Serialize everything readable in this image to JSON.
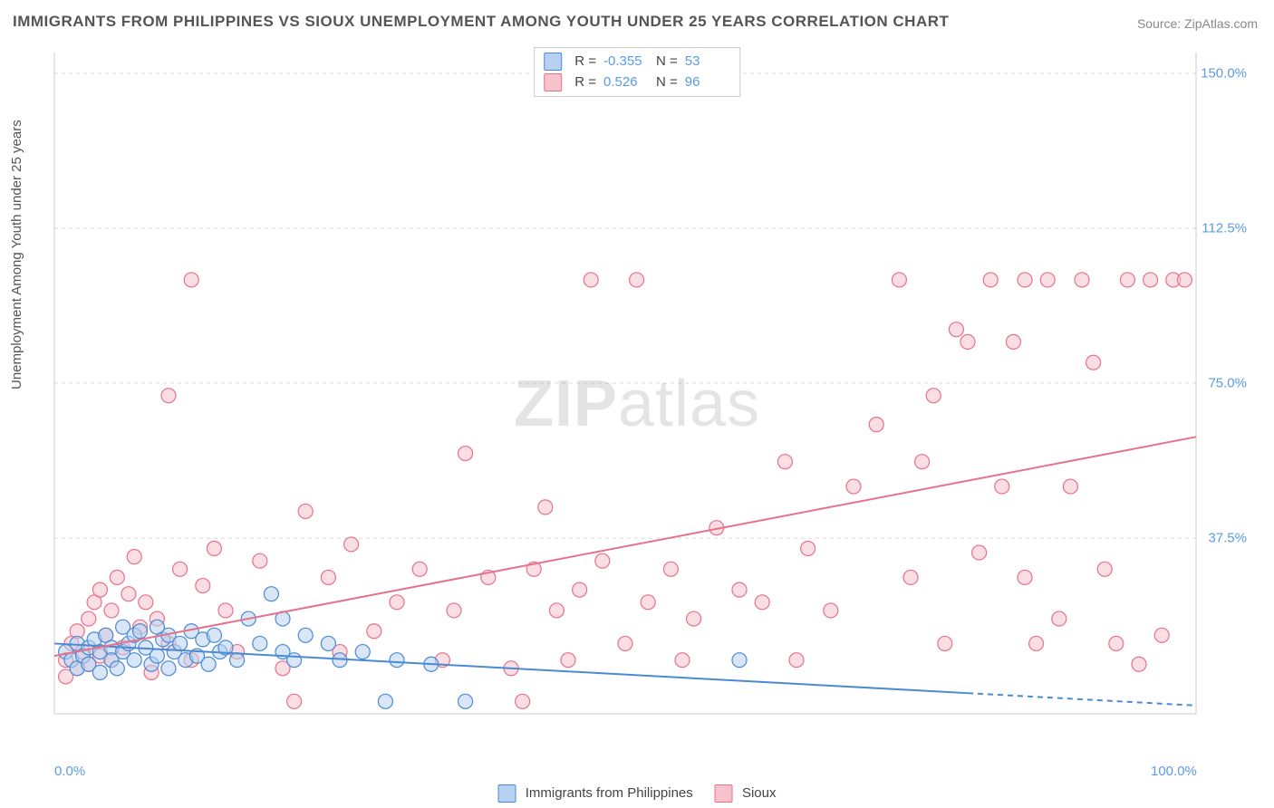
{
  "title": "IMMIGRANTS FROM PHILIPPINES VS SIOUX UNEMPLOYMENT AMONG YOUTH UNDER 25 YEARS CORRELATION CHART",
  "source_label": "Source: ZipAtlas.com",
  "watermark": "ZIPatlas",
  "ylabel": "Unemployment Among Youth under 25 years",
  "chart": {
    "type": "scatter",
    "xlim": [
      0,
      100
    ],
    "ylim": [
      -5,
      155
    ],
    "xticks": [
      {
        "v": 0,
        "label": "0.0%"
      },
      {
        "v": 100,
        "label": "100.0%"
      }
    ],
    "yticks": [
      {
        "v": 37.5,
        "label": "37.5%"
      },
      {
        "v": 75.0,
        "label": "75.0%"
      },
      {
        "v": 112.5,
        "label": "112.5%"
      },
      {
        "v": 150.0,
        "label": "150.0%"
      }
    ],
    "grid_color": "#d9d9d9",
    "background_color": "#ffffff",
    "axis_line_color": "#cccccc",
    "marker_radius": 8,
    "marker_stroke_width": 1.2,
    "trend_line_width": 2,
    "series": [
      {
        "name": "Immigrants from Philippines",
        "fill": "#b8d1f0",
        "stroke": "#4a8ad4",
        "fill_opacity": 0.55,
        "R": "-0.355",
        "N": "53",
        "trend": {
          "x1": 0,
          "y1": 12,
          "x2": 100,
          "y2": -3,
          "solid_until_x": 80
        },
        "points": [
          [
            1,
            10
          ],
          [
            1.5,
            8
          ],
          [
            2,
            12
          ],
          [
            2,
            6
          ],
          [
            2.5,
            9
          ],
          [
            3,
            11
          ],
          [
            3,
            7
          ],
          [
            3.5,
            13
          ],
          [
            4,
            10
          ],
          [
            4,
            5
          ],
          [
            4.5,
            14
          ],
          [
            5,
            11
          ],
          [
            5,
            8
          ],
          [
            5.5,
            6
          ],
          [
            6,
            16
          ],
          [
            6,
            10
          ],
          [
            6.5,
            12
          ],
          [
            7,
            14
          ],
          [
            7,
            8
          ],
          [
            7.5,
            15
          ],
          [
            8,
            11
          ],
          [
            8.5,
            7
          ],
          [
            9,
            16
          ],
          [
            9,
            9
          ],
          [
            9.5,
            13
          ],
          [
            10,
            14
          ],
          [
            10,
            6
          ],
          [
            10.5,
            10
          ],
          [
            11,
            12
          ],
          [
            11.5,
            8
          ],
          [
            12,
            15
          ],
          [
            12.5,
            9
          ],
          [
            13,
            13
          ],
          [
            13.5,
            7
          ],
          [
            14,
            14
          ],
          [
            14.5,
            10
          ],
          [
            15,
            11
          ],
          [
            16,
            8
          ],
          [
            17,
            18
          ],
          [
            18,
            12
          ],
          [
            19,
            24
          ],
          [
            20,
            10
          ],
          [
            20,
            18
          ],
          [
            21,
            8
          ],
          [
            22,
            14
          ],
          [
            24,
            12
          ],
          [
            25,
            8
          ],
          [
            27,
            10
          ],
          [
            29,
            -2
          ],
          [
            30,
            8
          ],
          [
            33,
            7
          ],
          [
            36,
            -2
          ],
          [
            60,
            8
          ]
        ]
      },
      {
        "name": "Sioux",
        "fill": "#f6c3cd",
        "stroke": "#e6718a",
        "fill_opacity": 0.55,
        "R": "0.526",
        "N": "96",
        "trend": {
          "x1": 0,
          "y1": 9,
          "x2": 100,
          "y2": 62,
          "solid_until_x": 100
        },
        "points": [
          [
            1,
            8
          ],
          [
            1,
            4
          ],
          [
            1.5,
            12
          ],
          [
            2,
            6
          ],
          [
            2,
            15
          ],
          [
            2.5,
            10
          ],
          [
            3,
            7
          ],
          [
            3,
            18
          ],
          [
            3.5,
            22
          ],
          [
            4,
            9
          ],
          [
            4,
            25
          ],
          [
            4.5,
            14
          ],
          [
            5,
            20
          ],
          [
            5,
            8
          ],
          [
            5.5,
            28
          ],
          [
            6,
            11
          ],
          [
            6.5,
            24
          ],
          [
            7,
            33
          ],
          [
            7.5,
            16
          ],
          [
            8,
            22
          ],
          [
            8.5,
            5
          ],
          [
            9,
            18
          ],
          [
            10,
            72
          ],
          [
            10,
            12
          ],
          [
            11,
            30
          ],
          [
            12,
            100
          ],
          [
            12,
            8
          ],
          [
            13,
            26
          ],
          [
            14,
            35
          ],
          [
            15,
            20
          ],
          [
            16,
            10
          ],
          [
            18,
            32
          ],
          [
            20,
            6
          ],
          [
            21,
            -2
          ],
          [
            22,
            44
          ],
          [
            24,
            28
          ],
          [
            25,
            10
          ],
          [
            26,
            36
          ],
          [
            28,
            15
          ],
          [
            30,
            22
          ],
          [
            32,
            30
          ],
          [
            34,
            8
          ],
          [
            35,
            20
          ],
          [
            36,
            58
          ],
          [
            38,
            28
          ],
          [
            40,
            6
          ],
          [
            41,
            -2
          ],
          [
            42,
            30
          ],
          [
            43,
            45
          ],
          [
            44,
            20
          ],
          [
            45,
            8
          ],
          [
            46,
            25
          ],
          [
            47,
            100
          ],
          [
            48,
            32
          ],
          [
            50,
            12
          ],
          [
            51,
            100
          ],
          [
            52,
            22
          ],
          [
            54,
            30
          ],
          [
            55,
            8
          ],
          [
            56,
            18
          ],
          [
            58,
            40
          ],
          [
            60,
            25
          ],
          [
            62,
            22
          ],
          [
            64,
            56
          ],
          [
            65,
            8
          ],
          [
            66,
            35
          ],
          [
            68,
            20
          ],
          [
            70,
            50
          ],
          [
            72,
            65
          ],
          [
            74,
            100
          ],
          [
            75,
            28
          ],
          [
            76,
            56
          ],
          [
            77,
            72
          ],
          [
            78,
            12
          ],
          [
            79,
            88
          ],
          [
            80,
            85
          ],
          [
            81,
            34
          ],
          [
            82,
            100
          ],
          [
            83,
            50
          ],
          [
            84,
            85
          ],
          [
            85,
            28
          ],
          [
            86,
            12
          ],
          [
            87,
            100
          ],
          [
            88,
            18
          ],
          [
            89,
            50
          ],
          [
            90,
            100
          ],
          [
            91,
            80
          ],
          [
            92,
            30
          ],
          [
            93,
            12
          ],
          [
            94,
            100
          ],
          [
            95,
            7
          ],
          [
            96,
            100
          ],
          [
            97,
            14
          ],
          [
            98,
            100
          ],
          [
            99,
            100
          ],
          [
            85,
            100
          ]
        ]
      }
    ],
    "legend_labels": {
      "R_prefix": "R =",
      "N_prefix": "N ="
    }
  }
}
